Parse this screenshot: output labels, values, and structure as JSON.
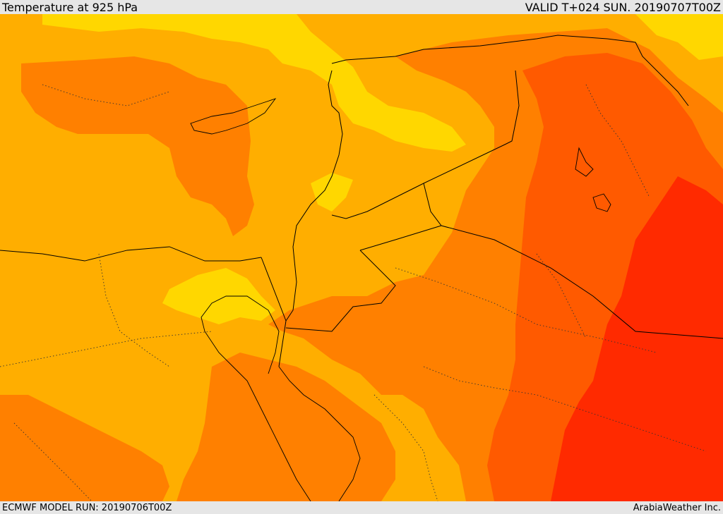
{
  "header": {
    "title": "Temperature at 925 hPa",
    "valid_time": "VALID T+024 SUN. 20190707T00Z"
  },
  "footer": {
    "model_run": "ECMWF MODEL RUN: 20190706T00Z",
    "credit": "ArabiaWeather Inc."
  },
  "palette": {
    "yellow": "#ffd700",
    "light_orange": "#ffae00",
    "orange": "#ff8000",
    "dark_orange": "#ff5a00",
    "red": "#ff2a00",
    "coastline": "#000000"
  }
}
